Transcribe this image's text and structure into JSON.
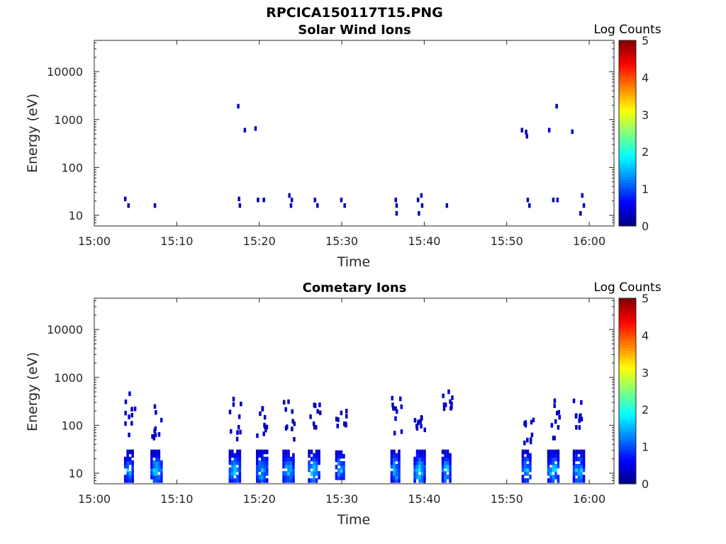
{
  "figure_title": "RPCICA150117T15.PNG",
  "chart_data": [
    {
      "type": "heatmap",
      "title": "Solar Wind Ions",
      "xlabel": "Time",
      "ylabel": "Energy (eV)",
      "x_ticks": [
        "15:00",
        "15:10",
        "15:20",
        "15:30",
        "15:40",
        "15:50",
        "16:00"
      ],
      "y_ticks": [
        "10",
        "100",
        "1000",
        "10000"
      ],
      "y_scale": "log",
      "ylim": [
        6,
        45000
      ],
      "xlim_minutes": [
        0,
        63
      ],
      "colorbar": {
        "label": "Log Counts",
        "ticks": [
          "0",
          "1",
          "2",
          "3",
          "4",
          "5"
        ],
        "range": [
          0,
          5
        ],
        "colormap": "jet"
      },
      "cells": [
        [
          3.6,
          22,
          0.3
        ],
        [
          4.0,
          16,
          0.3
        ],
        [
          7.2,
          16,
          0.3
        ],
        [
          17.3,
          1900,
          0.3
        ],
        [
          18.1,
          600,
          0.3
        ],
        [
          19.4,
          650,
          0.3
        ],
        [
          17.4,
          22,
          0.3
        ],
        [
          17.5,
          16,
          0.3
        ],
        [
          19.7,
          21,
          0.3
        ],
        [
          20.4,
          21,
          0.3
        ],
        [
          23.5,
          26,
          0.3
        ],
        [
          23.8,
          21,
          0.3
        ],
        [
          23.7,
          16,
          0.3
        ],
        [
          26.6,
          21,
          0.3
        ],
        [
          26.9,
          16,
          0.3
        ],
        [
          29.8,
          21,
          0.3
        ],
        [
          30.2,
          16,
          0.3
        ],
        [
          36.4,
          21,
          0.3
        ],
        [
          36.5,
          16,
          0.3
        ],
        [
          36.5,
          11,
          0.3
        ],
        [
          39.1,
          21,
          0.3
        ],
        [
          39.5,
          26,
          0.3
        ],
        [
          39.6,
          16,
          0.3
        ],
        [
          39.2,
          11,
          0.3
        ],
        [
          42.6,
          16,
          0.3
        ],
        [
          51.7,
          600,
          0.3
        ],
        [
          52.2,
          550,
          0.3
        ],
        [
          52.3,
          450,
          0.3
        ],
        [
          55.0,
          600,
          0.3
        ],
        [
          55.9,
          1900,
          0.3
        ],
        [
          57.8,
          560,
          0.3
        ],
        [
          52.4,
          21,
          0.3
        ],
        [
          52.6,
          16,
          0.3
        ],
        [
          55.5,
          21,
          0.3
        ],
        [
          56.0,
          21,
          0.3
        ],
        [
          59.0,
          26,
          0.3
        ],
        [
          59.2,
          16,
          0.3
        ],
        [
          58.8,
          11,
          0.3
        ]
      ]
    },
    {
      "type": "heatmap",
      "title": "Cometary Ions",
      "xlabel": "Time",
      "ylabel": "Energy (eV)",
      "x_ticks": [
        "15:00",
        "15:10",
        "15:20",
        "15:30",
        "15:40",
        "15:50",
        "16:00"
      ],
      "y_ticks": [
        "10",
        "100",
        "1000",
        "10000"
      ],
      "y_scale": "log",
      "ylim": [
        6,
        45000
      ],
      "xlim_minutes": [
        0,
        63
      ],
      "colorbar": {
        "label": "Log Counts",
        "ticks": [
          "0",
          "1",
          "2",
          "3",
          "4",
          "5"
        ],
        "range": [
          0,
          5
        ],
        "colormap": "jet"
      },
      "bursts": [
        {
          "minute": 3.6,
          "width": 1.2,
          "low": 7,
          "high": 28,
          "peak": 1.5,
          "sparse_min": 60,
          "sparse_max": 480
        },
        {
          "minute": 6.8,
          "width": 1.4,
          "low": 7,
          "high": 28,
          "peak": 1.6,
          "sparse_min": 40,
          "sparse_max": 320
        },
        {
          "minute": 16.3,
          "width": 1.4,
          "low": 7,
          "high": 28,
          "peak": 1.7,
          "sparse_min": 40,
          "sparse_max": 400
        },
        {
          "minute": 19.6,
          "width": 1.4,
          "low": 7,
          "high": 28,
          "peak": 1.6,
          "sparse_min": 60,
          "sparse_max": 260
        },
        {
          "minute": 22.8,
          "width": 1.4,
          "low": 7,
          "high": 28,
          "peak": 1.6,
          "sparse_min": 40,
          "sparse_max": 480
        },
        {
          "minute": 25.9,
          "width": 1.4,
          "low": 7,
          "high": 28,
          "peak": 1.7,
          "sparse_min": 80,
          "sparse_max": 290
        },
        {
          "minute": 29.2,
          "width": 1.3,
          "low": 8,
          "high": 28,
          "peak": 1.6,
          "sparse_min": 90,
          "sparse_max": 200
        },
        {
          "minute": 35.9,
          "width": 1.3,
          "low": 7,
          "high": 28,
          "peak": 1.6,
          "sparse_min": 60,
          "sparse_max": 400
        },
        {
          "minute": 38.7,
          "width": 1.4,
          "low": 7,
          "high": 28,
          "peak": 1.7,
          "sparse_min": 80,
          "sparse_max": 170
        },
        {
          "minute": 42.1,
          "width": 1.3,
          "low": 7,
          "high": 28,
          "peak": 1.6,
          "sparse_min": 170,
          "sparse_max": 540
        },
        {
          "minute": 51.8,
          "width": 1.3,
          "low": 7,
          "high": 28,
          "peak": 1.6,
          "sparse_min": 40,
          "sparse_max": 130
        },
        {
          "minute": 54.9,
          "width": 1.4,
          "low": 7,
          "high": 28,
          "peak": 1.7,
          "sparse_min": 50,
          "sparse_max": 370
        },
        {
          "minute": 58.0,
          "width": 1.4,
          "low": 7,
          "high": 28,
          "peak": 1.6,
          "sparse_min": 50,
          "sparse_max": 370
        }
      ]
    }
  ]
}
